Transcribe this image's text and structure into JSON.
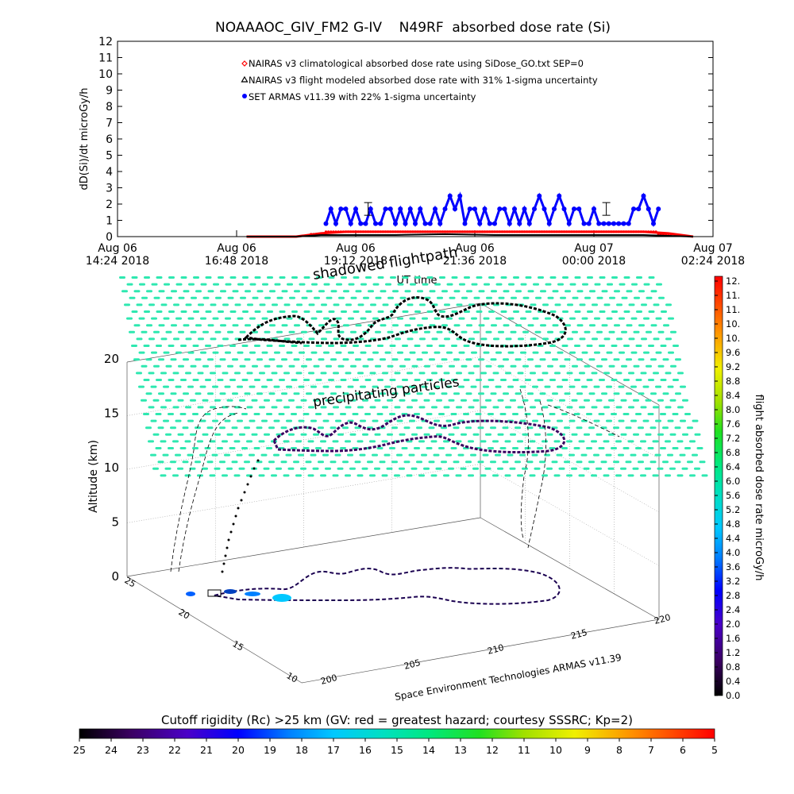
{
  "chart_data": [
    {
      "type": "scatter",
      "title": "NOAAAOC_GIV_FM2 G-IV    N49RF  absorbed dose rate (Si)",
      "ylabel": "dD(Si)/dt microGy/h",
      "xlabel": "UT time",
      "ylim": [
        0,
        12
      ],
      "yticks": [
        "0",
        "1",
        "2",
        "3",
        "4",
        "5",
        "6",
        "7",
        "8",
        "9",
        "10",
        "11",
        "12"
      ],
      "xticks": [
        {
          "top": "Aug 06",
          "bottom": "14:24 2018"
        },
        {
          "top": "Aug 06",
          "bottom": "16:48 2018"
        },
        {
          "top": "Aug 06",
          "bottom": "19:12 2018"
        },
        {
          "top": "Aug 06",
          "bottom": "21:36 2018"
        },
        {
          "top": "Aug 07",
          "bottom": "00:00 2018"
        },
        {
          "top": "Aug 07",
          "bottom": "02:24 2018"
        }
      ],
      "xlim_hours": [
        14.4,
        26.4
      ],
      "legend_position": "top-center",
      "series": [
        {
          "name": "NAIRAS v3 climatological absorbed dose rate using SiDose_GO.txt SEP=0",
          "color": "#ff0000",
          "marker": "diamond",
          "x_hours": [
            17.0,
            18.0,
            18.5,
            19.0,
            20.0,
            21.0,
            22.0,
            23.0,
            24.0,
            25.0,
            25.5,
            26.0
          ],
          "y": [
            0.0,
            0.0,
            0.2,
            0.3,
            0.3,
            0.3,
            0.3,
            0.3,
            0.3,
            0.3,
            0.2,
            0.0
          ]
        },
        {
          "name": "NAIRAS v3 flight modeled absorbed dose rate with 31% 1-sigma uncertainty",
          "color": "#000000",
          "marker": "triangle",
          "x_hours": [
            17.0,
            18.0,
            18.5,
            19.0,
            20.0,
            21.0,
            22.0,
            23.0,
            24.0,
            25.0,
            25.5,
            26.0
          ],
          "y": [
            0.0,
            0.0,
            0.1,
            0.1,
            0.1,
            0.15,
            0.1,
            0.1,
            0.1,
            0.1,
            0.05,
            0.0
          ]
        },
        {
          "name": "SET ARMAS v11.39 with 22% 1-sigma uncertainty",
          "color": "#0000ff",
          "marker": "circle",
          "x_hours": [
            18.6,
            18.7,
            18.8,
            18.9,
            19.0,
            19.1,
            19.2,
            19.3,
            19.4,
            19.5,
            19.6,
            19.7,
            19.8,
            19.9,
            20.0,
            20.1,
            20.2,
            20.3,
            20.4,
            20.5,
            20.6,
            20.7,
            20.8,
            20.9,
            21.0,
            21.1,
            21.2,
            21.3,
            21.4,
            21.5,
            21.6,
            21.7,
            21.8,
            21.9,
            22.0,
            22.1,
            22.2,
            22.3,
            22.4,
            22.5,
            22.6,
            22.7,
            22.8,
            22.9,
            23.0,
            23.1,
            23.2,
            23.3,
            23.4,
            23.5,
            23.6,
            23.7,
            23.8,
            23.9,
            24.0,
            24.1,
            24.2,
            24.3,
            24.4,
            24.5,
            24.6,
            24.7,
            24.8,
            24.9,
            25.0,
            25.1,
            25.2,
            25.3
          ],
          "y": [
            0.8,
            1.7,
            0.8,
            1.7,
            1.7,
            0.8,
            1.7,
            0.8,
            0.8,
            1.7,
            0.8,
            0.8,
            1.7,
            1.7,
            0.8,
            1.7,
            0.8,
            1.7,
            0.8,
            1.7,
            0.8,
            0.8,
            1.7,
            0.8,
            1.7,
            2.5,
            1.7,
            2.5,
            0.8,
            1.7,
            1.7,
            0.8,
            1.7,
            0.8,
            0.8,
            1.7,
            1.7,
            0.8,
            1.7,
            0.8,
            1.7,
            0.8,
            1.7,
            2.5,
            1.7,
            0.8,
            1.7,
            2.5,
            1.7,
            0.8,
            1.7,
            1.7,
            0.8,
            0.8,
            1.7,
            0.8,
            0.8,
            0.8,
            0.8,
            0.8,
            0.8,
            0.8,
            1.7,
            1.7,
            2.5,
            1.7,
            0.8,
            1.7
          ]
        }
      ]
    },
    {
      "type": "heatmap",
      "title": "shadowed flightpath",
      "subtitle": "precipitating particles",
      "zlabel": "Altitude (km)",
      "zticks": [
        "0",
        "5",
        "10",
        "15",
        "20"
      ],
      "xticks": [
        "200",
        "205",
        "210",
        "215",
        "220"
      ],
      "yticks": [
        "10",
        "15",
        "20",
        "25"
      ],
      "credit": "Space Environment Technologies ARMAS v11.39",
      "colorbar": {
        "label": "flight absorbed dose rate microGy/h",
        "ticks": [
          "12.",
          "11.",
          "11.",
          "10.",
          "10.",
          "9.6",
          "9.2",
          "8.8",
          "8.4",
          "8.0",
          "7.6",
          "7.2",
          "6.8",
          "6.4",
          "6.0",
          "5.6",
          "5.2",
          "4.8",
          "4.4",
          "4.0",
          "3.6",
          "3.2",
          "2.8",
          "2.4",
          "2.0",
          "1.6",
          "1.2",
          "0.8",
          "0.4",
          "0.0"
        ]
      }
    },
    {
      "type": "heatmap",
      "title": "Cutoff rigidity (Rc) >25 km (GV: red = greatest hazard; courtesy SSSRC; Kp=2)",
      "ticks": [
        "25",
        "24",
        "23",
        "22",
        "21",
        "20",
        "19",
        "18",
        "17",
        "16",
        "15",
        "14",
        "13",
        "12",
        "11",
        "10",
        "9",
        "8",
        "7",
        "6",
        "5"
      ]
    }
  ]
}
